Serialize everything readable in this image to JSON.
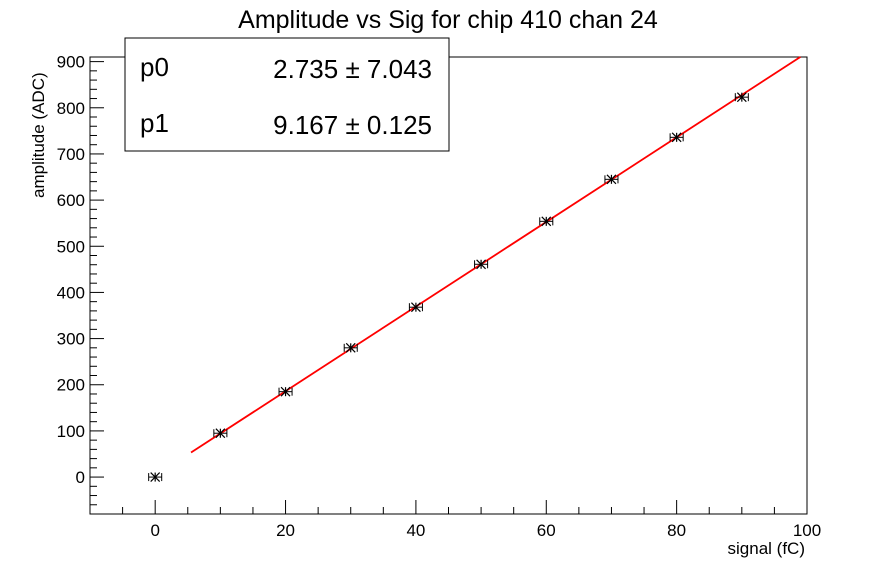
{
  "chart_data": {
    "type": "scatter",
    "title": "Amplitude vs Sig for chip 410 chan 24",
    "xlabel": "signal (fC)",
    "ylabel": "amplitude (ADC)",
    "xlim": [
      -10,
      100
    ],
    "ylim": [
      -80,
      910
    ],
    "x_ticks": [
      0,
      20,
      40,
      60,
      80,
      100
    ],
    "y_ticks": [
      0,
      100,
      200,
      300,
      400,
      500,
      600,
      700,
      800,
      900
    ],
    "grid": false,
    "legend": "none",
    "series": [
      {
        "x": [
          0,
          10,
          20,
          30,
          40,
          50,
          60,
          70,
          80,
          90
        ],
        "y": [
          0,
          95,
          185,
          280,
          368,
          461,
          554,
          645,
          736,
          823
        ],
        "x_err": [
          1,
          1,
          1,
          1,
          1,
          1,
          1,
          1,
          1,
          1
        ],
        "color": "#000000"
      }
    ],
    "fit": {
      "x_range": [
        5.5,
        99
      ],
      "p0": 2.735,
      "p1": 9.167,
      "color": "#ff0000"
    },
    "stats_box": {
      "position": "top-left",
      "rows": [
        {
          "name": "p0",
          "value": "2.735 ± 7.043"
        },
        {
          "name": "p1",
          "value": "9.167 ± 0.125"
        }
      ]
    }
  }
}
